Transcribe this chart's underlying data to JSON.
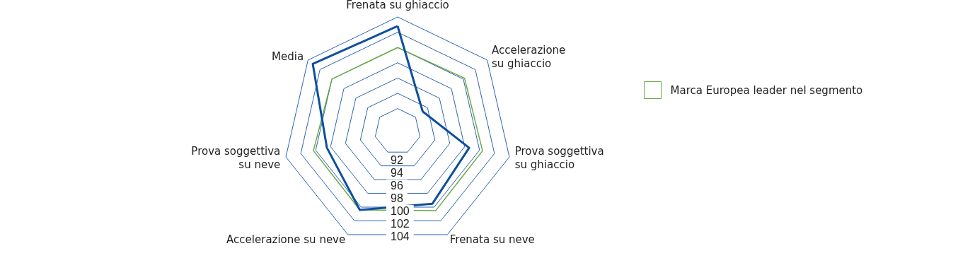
{
  "chart_data": {
    "type": "radar",
    "categories": [
      "Frenata su ghiaccio",
      "Accelerazione\nsu ghiaccio",
      "Prova soggettiva\nsu ghiaccio",
      "Frenata su neve",
      "Accelerazione su neve",
      "Prova soggettiva\nsu neve",
      "Media"
    ],
    "series": [
      {
        "name": "Marca Europea leader nel segmento",
        "color": "#6aaa46",
        "values": [
          100,
          100.2,
          100.4,
          100.5,
          100.4,
          100.3,
          100
        ]
      },
      {
        "color": "#0e4f9c",
        "values": [
          102.8,
          93.2,
          98.6,
          99.5,
          100.4,
          98.5,
          103.2
        ]
      }
    ],
    "ylim": [
      89,
      104
    ],
    "yticks": [
      92,
      94,
      96,
      98,
      100,
      102,
      104
    ],
    "grid": true,
    "legend": "right",
    "marker": "none"
  }
}
